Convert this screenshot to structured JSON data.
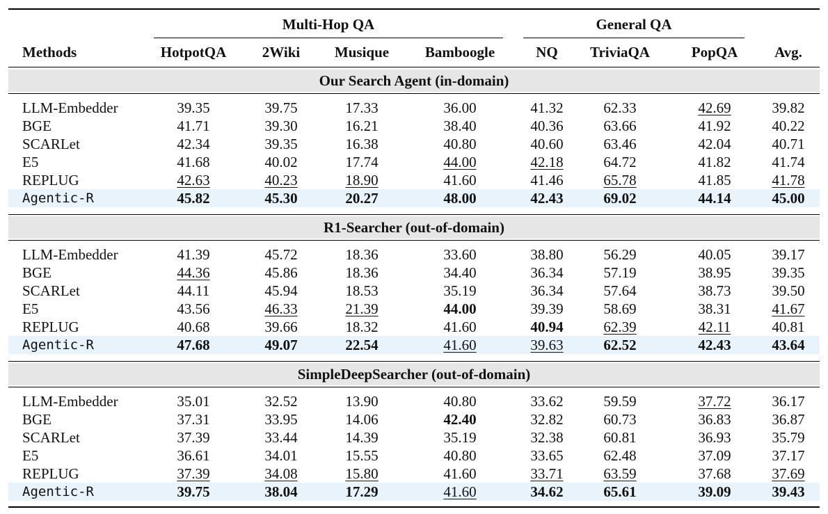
{
  "groups": [
    {
      "label": "Multi-Hop QA",
      "start_col": 0,
      "end_col": 3
    },
    {
      "label": "General QA",
      "start_col": 4,
      "end_col": 6
    }
  ],
  "header": {
    "methods": "Methods",
    "columns": [
      "HotpotQA",
      "2Wiki",
      "Musique",
      "Bamboogle",
      "NQ",
      "TriviaQA",
      "PopQA",
      "Avg."
    ]
  },
  "sections": [
    {
      "title": "Our Search Agent (in-domain)",
      "rows": [
        {
          "method": "LLM-Embedder",
          "values": [
            "39.35",
            "39.75",
            "17.33",
            "36.00",
            "41.32",
            "62.33",
            "42.69",
            "39.82"
          ],
          "underline": [
            6
          ]
        },
        {
          "method": "BGE",
          "values": [
            "41.71",
            "39.30",
            "16.21",
            "38.40",
            "40.36",
            "63.66",
            "41.92",
            "40.22"
          ]
        },
        {
          "method": "SCARLet",
          "values": [
            "42.34",
            "39.35",
            "16.38",
            "40.80",
            "40.60",
            "63.46",
            "42.04",
            "40.71"
          ]
        },
        {
          "method": "E5",
          "values": [
            "41.68",
            "40.02",
            "17.74",
            "44.00",
            "42.18",
            "64.72",
            "41.82",
            "41.74"
          ],
          "underline": [
            3,
            4
          ]
        },
        {
          "method": "REPLUG",
          "values": [
            "42.63",
            "40.23",
            "18.90",
            "41.60",
            "41.46",
            "65.78",
            "41.85",
            "41.78"
          ],
          "underline": [
            0,
            1,
            2,
            5,
            7
          ]
        },
        {
          "method": "Agentic-R",
          "mono": true,
          "highlight": true,
          "values": [
            "45.82",
            "45.30",
            "20.27",
            "48.00",
            "42.43",
            "69.02",
            "44.14",
            "45.00"
          ],
          "bold": [
            0,
            1,
            2,
            3,
            4,
            5,
            6,
            7
          ]
        }
      ]
    },
    {
      "title": "R1-Searcher (out-of-domain)",
      "rows": [
        {
          "method": "LLM-Embedder",
          "values": [
            "41.39",
            "45.72",
            "18.36",
            "33.60",
            "38.80",
            "56.29",
            "40.05",
            "39.17"
          ]
        },
        {
          "method": "BGE",
          "values": [
            "44.36",
            "45.86",
            "18.36",
            "34.40",
            "36.34",
            "57.19",
            "38.95",
            "39.35"
          ],
          "underline": [
            0
          ]
        },
        {
          "method": "SCARLet",
          "values": [
            "44.11",
            "45.94",
            "18.53",
            "35.19",
            "36.34",
            "57.64",
            "38.73",
            "39.50"
          ]
        },
        {
          "method": "E5",
          "values": [
            "43.56",
            "46.33",
            "21.39",
            "44.00",
            "39.39",
            "58.69",
            "38.31",
            "41.67"
          ],
          "underline": [
            1,
            2,
            7
          ],
          "bold": [
            3
          ]
        },
        {
          "method": "REPLUG",
          "values": [
            "40.68",
            "39.66",
            "18.32",
            "41.60",
            "40.94",
            "62.39",
            "42.11",
            "40.81"
          ],
          "underline": [
            5,
            6
          ],
          "bold": [
            4
          ]
        },
        {
          "method": "Agentic-R",
          "mono": true,
          "highlight": true,
          "values": [
            "47.68",
            "49.07",
            "22.54",
            "41.60",
            "39.63",
            "62.52",
            "42.43",
            "43.64"
          ],
          "bold": [
            0,
            1,
            2,
            5,
            6,
            7
          ],
          "underline": [
            3,
            4
          ]
        }
      ]
    },
    {
      "title": "SimpleDeepSearcher (out-of-domain)",
      "rows": [
        {
          "method": "LLM-Embedder",
          "values": [
            "35.01",
            "32.52",
            "13.90",
            "40.80",
            "33.62",
            "59.59",
            "37.72",
            "36.17"
          ],
          "underline": [
            6
          ]
        },
        {
          "method": "BGE",
          "values": [
            "37.31",
            "33.95",
            "14.06",
            "42.40",
            "32.82",
            "60.73",
            "36.83",
            "36.87"
          ],
          "bold": [
            3
          ]
        },
        {
          "method": "SCARLet",
          "values": [
            "37.39",
            "33.44",
            "14.39",
            "35.19",
            "32.38",
            "60.81",
            "36.93",
            "35.79"
          ]
        },
        {
          "method": "E5",
          "values": [
            "36.61",
            "34.01",
            "15.55",
            "40.80",
            "33.65",
            "62.48",
            "37.09",
            "37.17"
          ]
        },
        {
          "method": "REPLUG",
          "values": [
            "37.39",
            "34.08",
            "15.80",
            "41.60",
            "33.71",
            "63.59",
            "37.68",
            "37.69"
          ],
          "underline": [
            0,
            1,
            2,
            4,
            5,
            7
          ]
        },
        {
          "method": "Agentic-R",
          "mono": true,
          "highlight": true,
          "values": [
            "39.75",
            "38.04",
            "17.29",
            "41.60",
            "34.62",
            "65.61",
            "39.09",
            "39.43"
          ],
          "bold": [
            0,
            1,
            2,
            4,
            5,
            6,
            7
          ],
          "underline": [
            3
          ]
        }
      ]
    }
  ]
}
